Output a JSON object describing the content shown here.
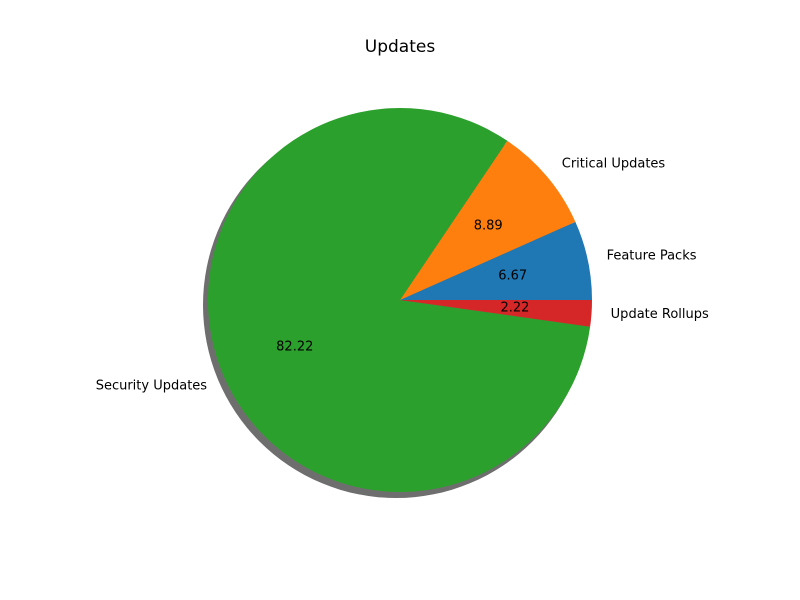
{
  "chart_data": {
    "type": "pie",
    "title": "Updates",
    "categories": [
      "Feature Packs",
      "Critical Updates",
      "Security Updates",
      "Update Rollups"
    ],
    "values": [
      6.67,
      8.89,
      82.22,
      2.22
    ],
    "value_labels": [
      "6.67",
      "8.89",
      "82.22",
      "2.22"
    ],
    "colors": [
      "#1f77b4",
      "#ff7f0e",
      "#2ca02c",
      "#d62728"
    ],
    "start_angle_deg": 0,
    "direction": "counterclockwise",
    "shadow": true,
    "legend": "none"
  }
}
